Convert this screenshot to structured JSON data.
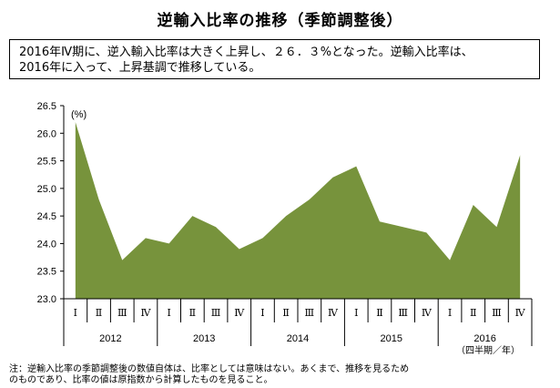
{
  "page": {
    "title": "逆輸入比率の推移（季節調整後）",
    "summary": [
      "2016年Ⅳ期に、逆入輸入比率は大きく上昇し、２６．３%となった。逆輸入比率は、",
      "2016年に入って、上昇基調で推移している。"
    ],
    "note": [
      "注：逆輸入比率の季節調整後の数値自体は、比率としては意味はない。あくまで、推移を見るため",
      "のものであり、比率の値は原指数から計算したものを見ること。"
    ]
  },
  "chart_data": {
    "type": "area",
    "ylabel": "(%)",
    "ylim": [
      23.0,
      26.5
    ],
    "yticks": [
      "23.0",
      "23.5",
      "24.0",
      "24.5",
      "25.0",
      "25.5",
      "26.0",
      "26.5"
    ],
    "quarters": [
      "Ⅰ",
      "Ⅱ",
      "Ⅲ",
      "Ⅳ",
      "Ⅰ",
      "Ⅱ",
      "Ⅲ",
      "Ⅳ",
      "Ⅰ",
      "Ⅱ",
      "Ⅲ",
      "Ⅳ",
      "Ⅰ",
      "Ⅱ",
      "Ⅲ",
      "Ⅳ",
      "Ⅰ",
      "Ⅱ",
      "Ⅲ",
      "Ⅳ"
    ],
    "years": [
      "2012",
      "2013",
      "2014",
      "2015",
      "2016"
    ],
    "x_unit": "（四半期／年）",
    "values": [
      26.2,
      24.8,
      23.7,
      24.1,
      24.0,
      24.5,
      24.3,
      23.9,
      24.1,
      24.5,
      24.8,
      25.2,
      25.4,
      24.4,
      24.3,
      24.2,
      23.7,
      24.7,
      24.3,
      25.6
    ],
    "fill_color": "#77933c",
    "grid": false
  }
}
